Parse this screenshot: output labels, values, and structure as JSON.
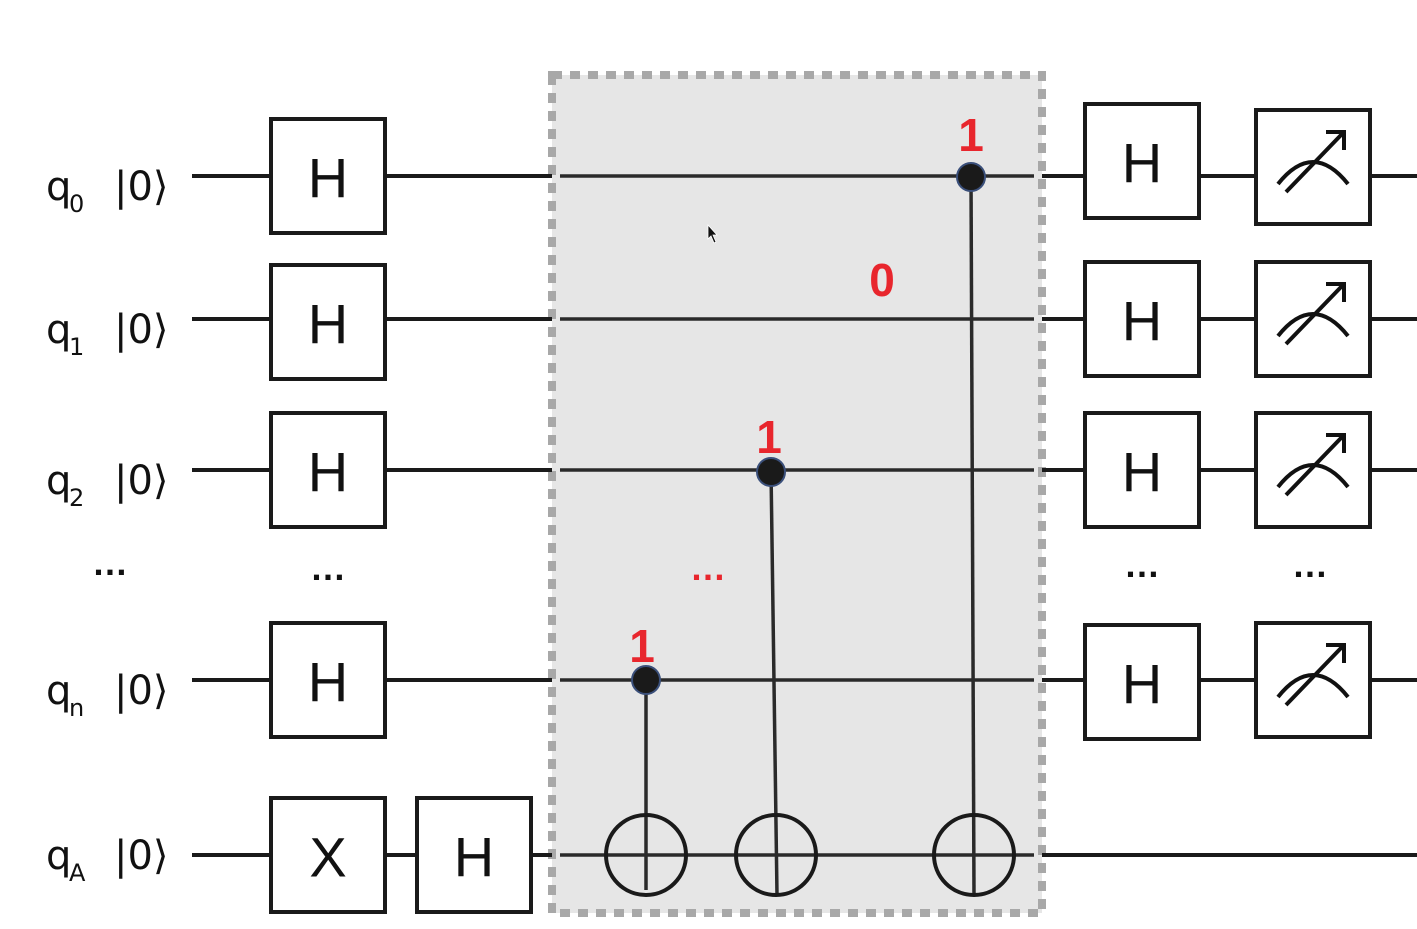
{
  "qubits": [
    {
      "name": "q",
      "sub": "0",
      "ket": "|0⟩"
    },
    {
      "name": "q",
      "sub": "1",
      "ket": "|0⟩"
    },
    {
      "name": "q",
      "sub": "2",
      "ket": "|0⟩"
    },
    {
      "name": "q",
      "sub": "n",
      "ket": "|0⟩"
    },
    {
      "name": "q",
      "sub": "A",
      "ket": "|0⟩"
    }
  ],
  "ellipsis": "…",
  "gates": {
    "hadamard": "H",
    "pauli_x": "X"
  },
  "oracle": {
    "bits": [
      "1",
      "0",
      "1",
      "1"
    ],
    "ellipsis": "…"
  }
}
